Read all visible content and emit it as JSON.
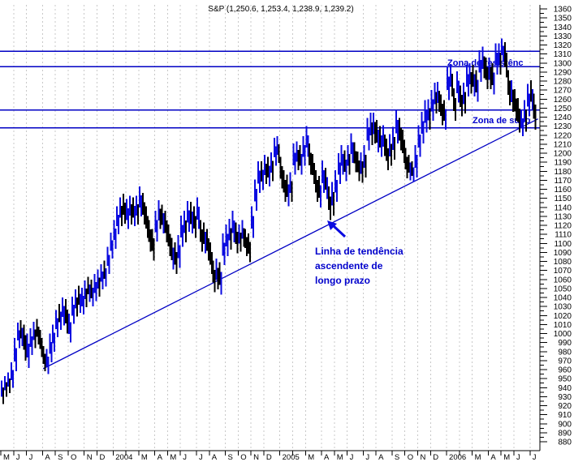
{
  "title": "S&P (1,250.6, 1,253.4, 1,238.9, 1,239.2)",
  "chart_data": {
    "type": "bar",
    "subtype": "high-low price bars (weekly resolution of daily S&P 500 chart)",
    "title": "S&P (1,250.6, 1,253.4, 1,238.9, 1,239.2)",
    "last_quote": {
      "open": 1250.6,
      "high": 1253.4,
      "low": 1238.9,
      "close": 1239.2
    },
    "ylim": [
      880,
      1360
    ],
    "y_tick_step": 10,
    "y_minor_tick_step": 5,
    "y_tick_labels": [
      1360,
      1350,
      1340,
      1330,
      1320,
      1310,
      1300,
      1290,
      1280,
      1270,
      1260,
      1250,
      1240,
      1230,
      1220,
      1210,
      1200,
      1190,
      1180,
      1170,
      1160,
      1150,
      1140,
      1130,
      1120,
      1110,
      1100,
      1090,
      1080,
      1070,
      1060,
      1050,
      1040,
      1030,
      1020,
      1010,
      1000,
      990,
      980,
      970,
      960,
      950,
      940,
      930,
      920,
      910,
      900,
      890,
      880
    ],
    "grid": "vertical dashed monthly gridlines",
    "x_months": [
      {
        "label": "M",
        "weeks": 4
      },
      {
        "label": "J",
        "weeks": 4
      },
      {
        "label": "J",
        "weeks": 5
      },
      {
        "label": "A",
        "weeks": 4
      },
      {
        "label": "S",
        "weeks": 4
      },
      {
        "label": "O",
        "weeks": 5
      },
      {
        "label": "N",
        "weeks": 4
      },
      {
        "label": "D",
        "weeks": 5
      },
      {
        "label": "2004",
        "weeks": 4
      },
      {
        "label": "",
        "weeks": 4
      },
      {
        "label": "M",
        "weeks": 5
      },
      {
        "label": "A",
        "weeks": 4
      },
      {
        "label": "M",
        "weeks": 4
      },
      {
        "label": "J",
        "weeks": 5
      },
      {
        "label": "J",
        "weeks": 4
      },
      {
        "label": "A",
        "weeks": 5
      },
      {
        "label": "S",
        "weeks": 4
      },
      {
        "label": "O",
        "weeks": 4
      },
      {
        "label": "N",
        "weeks": 4
      },
      {
        "label": "D",
        "weeks": 5
      },
      {
        "label": "2005",
        "weeks": 4
      },
      {
        "label": "",
        "weeks": 4
      },
      {
        "label": "M",
        "weeks": 5
      },
      {
        "label": "A",
        "weeks": 4
      },
      {
        "label": "M",
        "weeks": 4
      },
      {
        "label": "J",
        "weeks": 5
      },
      {
        "label": "J",
        "weeks": 4
      },
      {
        "label": "A",
        "weeks": 5
      },
      {
        "label": "S",
        "weeks": 4
      },
      {
        "label": "O",
        "weeks": 4
      },
      {
        "label": "N",
        "weeks": 4
      },
      {
        "label": "D",
        "weeks": 5
      },
      {
        "label": "2006",
        "weeks": 4
      },
      {
        "label": "",
        "weeks": 4
      },
      {
        "label": "M",
        "weeks": 5
      },
      {
        "label": "A",
        "weeks": 4
      },
      {
        "label": "M",
        "weeks": 4
      },
      {
        "label": "J",
        "weeks": 5
      },
      {
        "label": "J",
        "weeks": 2
      }
    ],
    "weekly_bars": [
      [
        948,
        922,
        940
      ],
      [
        953,
        930,
        946
      ],
      [
        957,
        934,
        951
      ],
      [
        968,
        940,
        963
      ],
      [
        995,
        958,
        988
      ],
      [
        1012,
        984,
        1000
      ],
      [
        1015,
        986,
        995
      ],
      [
        1010,
        970,
        976
      ],
      [
        1000,
        962,
        985
      ],
      [
        1006,
        976,
        998
      ],
      [
        1013,
        984,
        1005
      ],
      [
        1016,
        988,
        994
      ],
      [
        1004,
        974,
        981
      ],
      [
        986,
        958,
        966
      ],
      [
        983,
        955,
        977
      ],
      [
        1000,
        968,
        992
      ],
      [
        1010,
        980,
        1003
      ],
      [
        1026,
        996,
        1021
      ],
      [
        1033,
        1004,
        1018
      ],
      [
        1040,
        1009,
        1036
      ],
      [
        1038,
        1000,
        1009
      ],
      [
        1022,
        990,
        1020
      ],
      [
        1041,
        1011,
        1034
      ],
      [
        1049,
        1019,
        1040
      ],
      [
        1053,
        1023,
        1033
      ],
      [
        1051,
        1021,
        1046
      ],
      [
        1059,
        1029,
        1053
      ],
      [
        1063,
        1035,
        1047
      ],
      [
        1060,
        1030,
        1042
      ],
      [
        1066,
        1036,
        1058
      ],
      [
        1071,
        1041,
        1061
      ],
      [
        1077,
        1049,
        1074
      ],
      [
        1081,
        1052,
        1068
      ],
      [
        1096,
        1066,
        1088
      ],
      [
        1112,
        1083,
        1108
      ],
      [
        1126,
        1094,
        1122
      ],
      [
        1141,
        1110,
        1132
      ],
      [
        1151,
        1119,
        1140
      ],
      [
        1155,
        1122,
        1131
      ],
      [
        1149,
        1116,
        1143
      ],
      [
        1153,
        1121,
        1146
      ],
      [
        1151,
        1119,
        1140
      ],
      [
        1153,
        1121,
        1145
      ],
      [
        1163,
        1130,
        1157
      ],
      [
        1156,
        1121,
        1140
      ],
      [
        1141,
        1106,
        1120
      ],
      [
        1126,
        1091,
        1109
      ],
      [
        1116,
        1081,
        1096
      ],
      [
        1136,
        1102,
        1132
      ],
      [
        1148,
        1116,
        1140
      ],
      [
        1143,
        1111,
        1134
      ],
      [
        1136,
        1101,
        1121
      ],
      [
        1121,
        1086,
        1107
      ],
      [
        1106,
        1071,
        1099
      ],
      [
        1101,
        1066,
        1084
      ],
      [
        1109,
        1073,
        1094
      ],
      [
        1131,
        1096,
        1121
      ],
      [
        1136,
        1101,
        1123
      ],
      [
        1147,
        1113,
        1136
      ],
      [
        1146,
        1111,
        1135
      ],
      [
        1141,
        1106,
        1125
      ],
      [
        1151,
        1116,
        1141
      ],
      [
        1126,
        1091,
        1113
      ],
      [
        1123,
        1089,
        1112
      ],
      [
        1116,
        1081,
        1101
      ],
      [
        1101,
        1066,
        1086
      ],
      [
        1081,
        1046,
        1063
      ],
      [
        1083,
        1049,
        1065
      ],
      [
        1079,
        1043,
        1061
      ],
      [
        1111,
        1076,
        1098
      ],
      [
        1121,
        1086,
        1108
      ],
      [
        1127,
        1093,
        1114
      ],
      [
        1136,
        1101,
        1124
      ],
      [
        1123,
        1089,
        1110
      ],
      [
        1121,
        1091,
        1114
      ],
      [
        1126,
        1096,
        1122
      ],
      [
        1116,
        1086,
        1108
      ],
      [
        1111,
        1079,
        1096
      ],
      [
        1141,
        1106,
        1130
      ],
      [
        1171,
        1136,
        1166
      ],
      [
        1191,
        1156,
        1184
      ],
      [
        1191,
        1159,
        1183
      ],
      [
        1198,
        1166,
        1191
      ],
      [
        1196,
        1163,
        1188
      ],
      [
        1201,
        1169,
        1194
      ],
      [
        1217,
        1186,
        1210
      ],
      [
        1219,
        1189,
        1212
      ],
      [
        1196,
        1161,
        1186
      ],
      [
        1181,
        1146,
        1172
      ],
      [
        1176,
        1141,
        1167
      ],
      [
        1179,
        1146,
        1171
      ],
      [
        1211,
        1176,
        1203
      ],
      [
        1213,
        1181,
        1205
      ],
      [
        1209,
        1176,
        1201
      ],
      [
        1219,
        1186,
        1211
      ],
      [
        1230,
        1196,
        1222
      ],
      [
        1211,
        1176,
        1200
      ],
      [
        1199,
        1166,
        1190
      ],
      [
        1181,
        1146,
        1171
      ],
      [
        1175,
        1140,
        1165
      ],
      [
        1192,
        1156,
        1181
      ],
      [
        1184,
        1149,
        1173
      ],
      [
        1163,
        1126,
        1152
      ],
      [
        1168,
        1131,
        1157
      ],
      [
        1181,
        1146,
        1171
      ],
      [
        1200,
        1166,
        1189
      ],
      [
        1209,
        1176,
        1198
      ],
      [
        1203,
        1169,
        1192
      ],
      [
        1209,
        1176,
        1198
      ],
      [
        1222,
        1189,
        1211
      ],
      [
        1212,
        1179,
        1201
      ],
      [
        1202,
        1169,
        1191
      ],
      [
        1201,
        1167,
        1194
      ],
      [
        1209,
        1173,
        1198
      ],
      [
        1239,
        1203,
        1228
      ],
      [
        1245,
        1209,
        1234
      ],
      [
        1245,
        1211,
        1234
      ],
      [
        1237,
        1201,
        1226
      ],
      [
        1230,
        1196,
        1219
      ],
      [
        1231,
        1197,
        1220
      ],
      [
        1216,
        1181,
        1205
      ],
      [
        1221,
        1186,
        1212
      ],
      [
        1229,
        1193,
        1218
      ],
      [
        1248,
        1211,
        1237
      ],
      [
        1239,
        1203,
        1228
      ],
      [
        1226,
        1189,
        1215
      ],
      [
        1206,
        1172,
        1195
      ],
      [
        1198,
        1170,
        1187
      ],
      [
        1191,
        1168,
        1180
      ],
      [
        1209,
        1173,
        1198
      ],
      [
        1231,
        1196,
        1220
      ],
      [
        1246,
        1211,
        1235
      ],
      [
        1259,
        1223,
        1248
      ],
      [
        1260,
        1226,
        1249
      ],
      [
        1270,
        1236,
        1259
      ],
      [
        1278,
        1244,
        1267
      ],
      [
        1279,
        1246,
        1268
      ],
      [
        1265,
        1231,
        1254
      ],
      [
        1259,
        1226,
        1248
      ],
      [
        1296,
        1259,
        1285
      ],
      [
        1299,
        1263,
        1288
      ],
      [
        1272,
        1236,
        1261
      ],
      [
        1291,
        1256,
        1280
      ],
      [
        1275,
        1241,
        1264
      ],
      [
        1278,
        1244,
        1267
      ],
      [
        1298,
        1263,
        1287
      ],
      [
        1300,
        1266,
        1289
      ],
      [
        1298,
        1263,
        1287
      ],
      [
        1292,
        1257,
        1281
      ],
      [
        1314,
        1279,
        1303
      ],
      [
        1318,
        1283,
        1307
      ],
      [
        1306,
        1271,
        1295
      ],
      [
        1306,
        1271,
        1295
      ],
      [
        1300,
        1265,
        1289
      ],
      [
        1322,
        1287,
        1311
      ],
      [
        1322,
        1287,
        1311
      ],
      [
        1327,
        1301,
        1325
      ],
      [
        1323,
        1284,
        1291
      ],
      [
        1292,
        1253,
        1267
      ],
      [
        1281,
        1246,
        1270
      ],
      [
        1271,
        1236,
        1260
      ],
      [
        1261,
        1223,
        1236
      ],
      [
        1247,
        1219,
        1245
      ],
      [
        1259,
        1224,
        1252
      ],
      [
        1277,
        1241,
        1270
      ],
      [
        1281,
        1247,
        1265
      ],
      [
        1266,
        1226,
        1239
      ]
    ],
    "resistance_zone": {
      "label": "Zona de resistênc",
      "levels": [
        1313,
        1296
      ]
    },
    "support_zone": {
      "label": "Zona de supo",
      "levels": [
        1248,
        1228
      ]
    },
    "trendline": {
      "label_lines": [
        "Linha de tendência",
        "ascendente de",
        "longo prazo"
      ],
      "from_week": 13.2,
      "from_value": 961,
      "to_week": 167.5,
      "to_value": 1238
    },
    "legend": "none",
    "colors": {
      "bar_up": "#0b0be0",
      "bar_down": "#000000",
      "level_line": "#0000c4",
      "trend_line": "#0000c4",
      "annotation_text": "#0000cc",
      "grid_line": "#c8c8c8",
      "axis": "#000000",
      "background": "#ffffff"
    }
  }
}
